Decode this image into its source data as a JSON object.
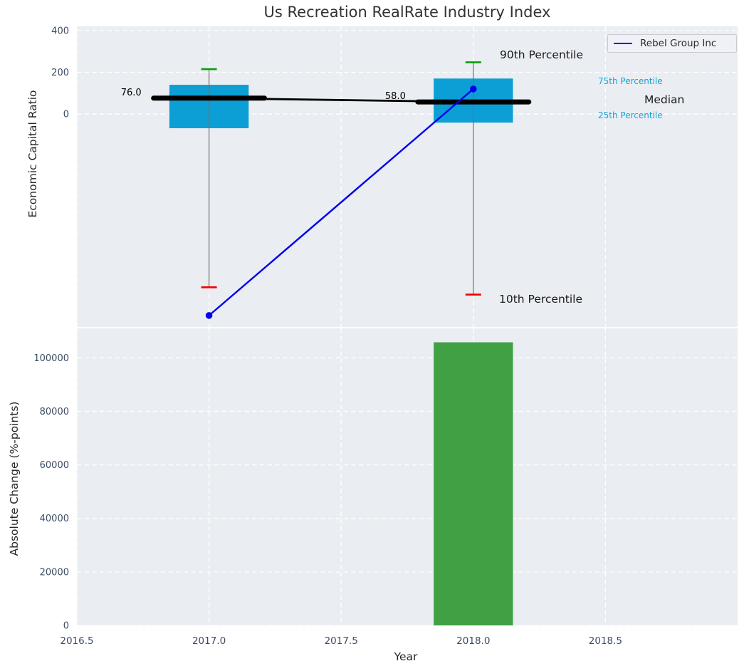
{
  "title": "Us Recreation RealRate Industry Index",
  "axis_labels": {
    "top_y": "Economic Capital Ratio",
    "bottom_y": "Absolute Change (%-points)",
    "x": "Year"
  },
  "legend": {
    "series_label": "Rebel Group Inc",
    "position": "upper right"
  },
  "percentile_labels": {
    "p90": "90th Percentile",
    "p75": "75th Percentile",
    "median": "Median",
    "p25": "25th Percentile",
    "p10": "10th Percentile"
  },
  "colors": {
    "figure_bg": "#ffffff",
    "axes_bg": "#eaedf2",
    "grid": "#ffffff",
    "box_fill": "#0c9fd6",
    "whisker": "#6f6f6f",
    "cap_top": "#0a9e0a",
    "cap_bottom": "#f20000",
    "median_line": "#000000",
    "company_line": "#0000ee",
    "bar_fill": "#3fa044",
    "tick_label": "#3d4c63",
    "cyan_label": "#18a5d6",
    "dark_text": "#1a1a1a"
  },
  "chart_data": [
    {
      "type": "box",
      "subtype": "percentile-bands-with-company-line",
      "title": "Us Recreation RealRate Industry Index",
      "xlabel": "Year",
      "ylabel": "Economic Capital Ratio",
      "xlim": [
        2016.5,
        2019.0
      ],
      "ylim": [
        -1020,
        420
      ],
      "grid": true,
      "legend_position": "upper right",
      "xtick_values": [
        2016.5,
        2017.0,
        2017.5,
        2018.0,
        2018.5
      ],
      "xtick_labels": [
        "2016.5",
        "2017.0",
        "2017.5",
        "2018.0",
        "2018.5"
      ],
      "ytick_values": [
        0,
        200,
        400
      ],
      "ytick_labels": [
        "0",
        "200",
        "400"
      ],
      "groups": [
        {
          "x": 2017,
          "p10": -830,
          "p25": -68,
          "median": 76,
          "p75": 140,
          "p90": 215,
          "median_label": "76.0"
        },
        {
          "x": 2018,
          "p10": -865,
          "p25": -41,
          "median": 58,
          "p75": 170,
          "p90": 248,
          "median_label": "58.0"
        }
      ],
      "box_width_years": 0.3,
      "median_seg_width_years": 0.42,
      "series": [
        {
          "name": "Rebel Group Inc",
          "x": [
            2017,
            2018
          ],
          "y": [
            -965,
            120
          ],
          "color": "#0000ee",
          "marker": "o"
        }
      ]
    },
    {
      "type": "bar",
      "xlabel": "Year",
      "ylabel": "Absolute Change (%-points)",
      "xlim": [
        2016.5,
        2019.0
      ],
      "ylim": [
        0,
        111000
      ],
      "grid": true,
      "xtick_values": [
        2016.5,
        2017.0,
        2017.5,
        2018.0,
        2018.5
      ],
      "xtick_labels": [
        "2016.5",
        "2017.0",
        "2017.5",
        "2018.0",
        "2018.5"
      ],
      "ytick_values": [
        0,
        20000,
        40000,
        60000,
        80000,
        100000
      ],
      "ytick_labels": [
        "0",
        "20000",
        "40000",
        "60000",
        "80000",
        "100000"
      ],
      "categories": [
        2018
      ],
      "values": [
        105800
      ],
      "bar_width_years": 0.3
    }
  ]
}
